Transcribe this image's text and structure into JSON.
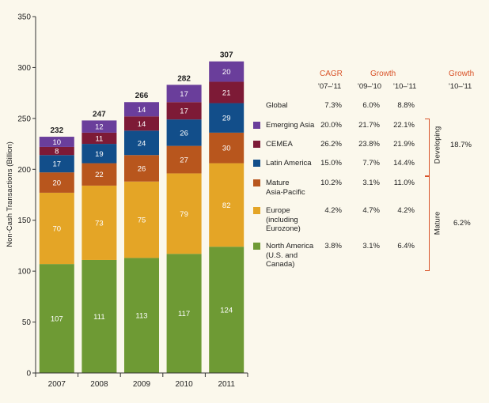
{
  "chart_data": {
    "type": "bar",
    "stacked": true,
    "categories": [
      "2007",
      "2008",
      "2009",
      "2010",
      "2011"
    ],
    "series": [
      {
        "name": "North America (U.S. and Canada)",
        "color": "#6e9a34",
        "values": [
          107,
          111,
          113,
          117,
          124
        ]
      },
      {
        "name": "Europe (including Eurozone)",
        "color": "#e4a526",
        "values": [
          70,
          73,
          75,
          79,
          82
        ]
      },
      {
        "name": "Mature Asia-Pacific",
        "color": "#b8561d",
        "values": [
          20,
          22,
          26,
          27,
          30
        ]
      },
      {
        "name": "Latin America",
        "color": "#124e8a",
        "values": [
          17,
          19,
          24,
          26,
          29
        ]
      },
      {
        "name": "CEMEA",
        "color": "#7d1a36",
        "values": [
          8,
          11,
          14,
          17,
          21
        ]
      },
      {
        "name": "Emerging Asia",
        "color": "#6a3e9b",
        "values": [
          10,
          12,
          14,
          17,
          20
        ]
      }
    ],
    "totals": [
      "232",
      "247",
      "266",
      "282",
      "307"
    ],
    "ylabel": "Non-Cash Transactions (Billion)",
    "xlabel": "",
    "title": "",
    "ylim": [
      0,
      350
    ],
    "yticks": [
      0,
      50,
      100,
      150,
      200,
      250,
      300,
      350
    ],
    "grid": false
  },
  "table": {
    "headers": {
      "cagr": "CAGR",
      "growth1": "Growth",
      "growth2": "Growth",
      "sub_cagr": "'07–'11",
      "sub_g1": "'09–'10",
      "sub_g2": "'10–'11",
      "sub_grp": "'10–'11"
    },
    "rows": [
      {
        "label_lines": [
          "Global"
        ],
        "cagr": "7.3%",
        "g1": "6.0%",
        "g2": "8.8%"
      },
      {
        "label_lines": [
          "Emerging Asia"
        ],
        "cagr": "20.0%",
        "g1": "21.7%",
        "g2": "22.1%",
        "color": "#6a3e9b"
      },
      {
        "label_lines": [
          "CEMEA"
        ],
        "cagr": "26.2%",
        "g1": "23.8%",
        "g2": "21.9%",
        "color": "#7d1a36"
      },
      {
        "label_lines": [
          "Latin America"
        ],
        "cagr": "15.0%",
        "g1": "7.7%",
        "g2": "14.4%",
        "color": "#124e8a"
      },
      {
        "label_lines": [
          "Mature",
          "Asia-Pacific"
        ],
        "cagr": "10.2%",
        "g1": "3.1%",
        "g2": "11.0%",
        "color": "#b8561d"
      },
      {
        "label_lines": [
          "Europe",
          "(including",
          "Eurozone)"
        ],
        "cagr": "4.2%",
        "g1": "4.7%",
        "g2": "4.2%",
        "color": "#e4a526"
      },
      {
        "label_lines": [
          "North America",
          "(U.S. and",
          "Canada)"
        ],
        "cagr": "3.8%",
        "g1": "3.1%",
        "g2": "6.4%",
        "color": "#6e9a34"
      }
    ],
    "groups": {
      "developing": {
        "label": "Developing",
        "growth": "18.7%"
      },
      "mature": {
        "label": "Mature",
        "growth": "6.2%"
      }
    }
  },
  "colors": {
    "accent": "#d9542a",
    "background": "#fbf8ec"
  }
}
